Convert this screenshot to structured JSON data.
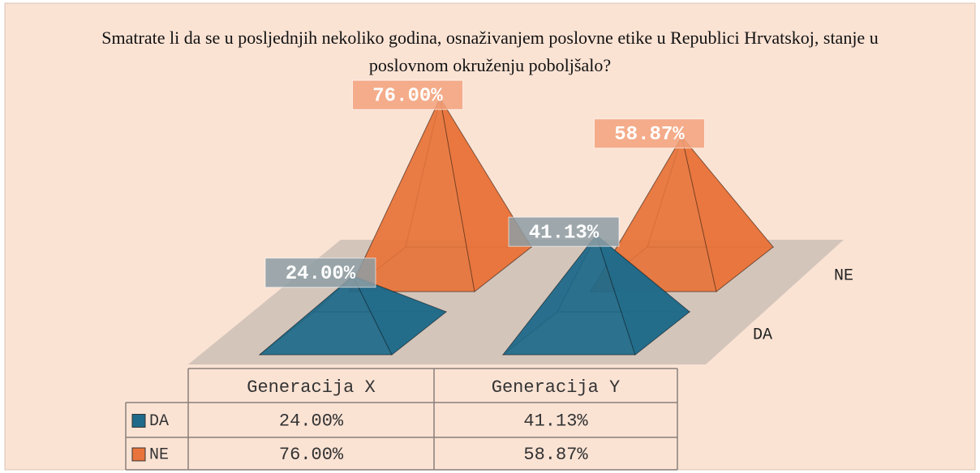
{
  "chart_data": {
    "type": "pyramid3d",
    "title": "Smatrate li da se u posljednjih nekoliko godina, osnaživanjem poslovne etike u Republici Hrvatskoj, stanje u poslovnom okruženju poboljšalo?",
    "categories": [
      "Generacija X",
      "Generacija Y"
    ],
    "series": [
      {
        "name": "DA",
        "color": "#1f6a8a",
        "values": [
          24.0,
          41.13
        ],
        "value_labels": [
          "24.00%",
          "41.13%"
        ]
      },
      {
        "name": "NE",
        "color": "#e8743b",
        "values": [
          76.0,
          58.87
        ],
        "value_labels": [
          "76.00%",
          "58.87%"
        ]
      }
    ],
    "data_table": true
  }
}
